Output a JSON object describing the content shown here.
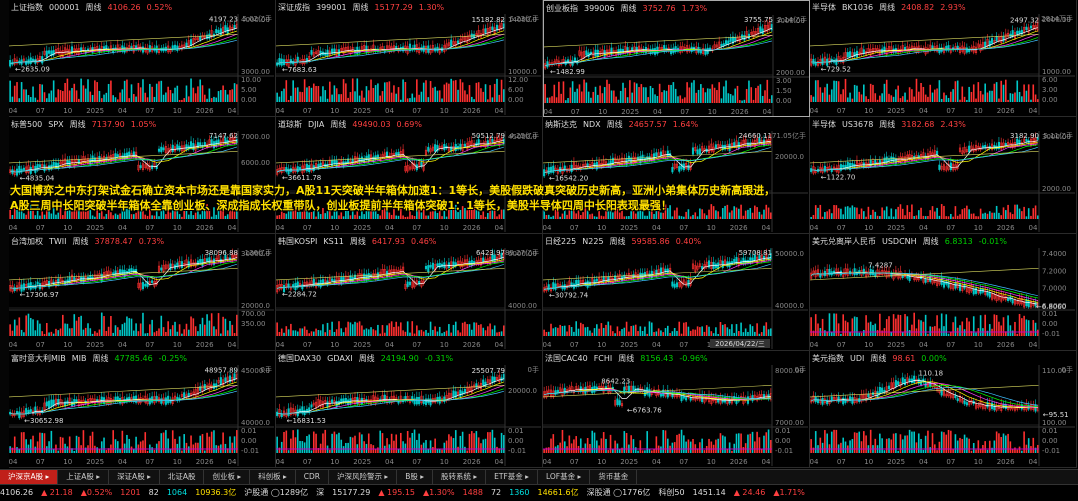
{
  "banner": {
    "line1": "大国博弈之中东打架试金石确立资本市场还是靠国家实力，A股11天突破半年箱体加速1：1等长，美股假跌破真突破历史新高，亚洲小弟集体历史新高跟进，",
    "line2": "A股三周中长阳突破半年箱体全靠创业板、深成指成长权重带队，创业板提前半年箱体突破1：1等长，美股半导体四周中长阳表现最强！"
  },
  "panels": [
    {
      "name": "上证指数",
      "code": "000001",
      "period": "周线",
      "price": "4106.26",
      "change": "0.52%",
      "dir": "up",
      "high": "4197.23",
      "low": "2635.09",
      "vol": "5.02亿手",
      "ylabels": [
        "4000.00",
        "3000.00"
      ],
      "vlabels": [
        "10.00",
        "5.00",
        "0.00"
      ],
      "xlabels": [
        "04",
        "07",
        "10",
        "2025",
        "04",
        "07",
        "10",
        "2026",
        "04"
      ],
      "trend": "up"
    },
    {
      "name": "深证成指",
      "code": "399001",
      "period": "周线",
      "price": "15177.29",
      "change": "1.30%",
      "dir": "up",
      "high": "15182.82",
      "low": "7683.63",
      "vol": "6.23亿手",
      "ylabels": [
        "14000.0",
        "10000.0"
      ],
      "vlabels": [
        "12.00",
        "6.00",
        "0.00"
      ],
      "xlabels": [
        "04",
        "07",
        "10",
        "2025",
        "04",
        "07",
        "10",
        "2026",
        "04"
      ],
      "trend": "up"
    },
    {
      "name": "创业板指",
      "code": "399006",
      "period": "周线",
      "price": "3752.76",
      "change": "1.73%",
      "dir": "up",
      "high": "3755.75",
      "low": "1482.99",
      "vol": "2.14亿手",
      "ylabels": [
        "3000.00",
        "2000.00"
      ],
      "vlabels": [
        "3.00",
        "1.50",
        "0.00"
      ],
      "xlabels": [
        "04",
        "07",
        "10",
        "2025",
        "04",
        "07",
        "10",
        "2026",
        "04"
      ],
      "trend": "up"
    },
    {
      "name": "半导体",
      "code": "BK1036",
      "period": "周线",
      "price": "2408.82",
      "change": "2.93%",
      "dir": "up",
      "high": "2497.32",
      "low": "729.52",
      "vol": "2814万手",
      "ylabels": [
        "2000.00",
        "1000.00"
      ],
      "vlabels": [
        "6.00",
        "3.00",
        "0.00"
      ],
      "xlabels": [
        "04",
        "07",
        "10",
        "2025",
        "04",
        "07",
        "10",
        "2026",
        "04"
      ],
      "trend": "up"
    },
    {
      "name": "标普500",
      "code": "SPX",
      "period": "周线",
      "price": "7137.90",
      "change": "1.05%",
      "dir": "up",
      "high": "7147.62",
      "low": "4835.04",
      "vol": "",
      "ylabels": [
        "7000.00",
        "6000.00",
        "5000.00"
      ],
      "vlabels": [
        "",
        "",
        ""
      ],
      "xlabels": [
        "04",
        "07",
        "10",
        "2025",
        "04",
        "07",
        "10",
        "2026",
        "04"
      ],
      "trend": "upv"
    },
    {
      "name": "道琼斯",
      "code": "DJIA",
      "period": "周线",
      "price": "49490.03",
      "change": "0.69%",
      "dir": "up",
      "high": "50512.79",
      "low": "36611.78",
      "vol": "4.25亿手",
      "ylabels": [
        "45000.0",
        "40000.0"
      ],
      "vlabels": [
        "",
        "",
        ""
      ],
      "xlabels": [
        "04",
        "07",
        "10",
        "2025",
        "04",
        "07",
        "10",
        "2026",
        "04"
      ],
      "trend": "upv"
    },
    {
      "name": "纳斯达克",
      "code": "NDX",
      "period": "周线",
      "price": "24657.57",
      "change": "1.64%",
      "dir": "up",
      "high": "24660.11",
      "low": "16542.20",
      "vol": "71.05亿手",
      "ylabels": [
        "20000.0"
      ],
      "vlabels": [
        "",
        "",
        ""
      ],
      "xlabels": [
        "04",
        "07",
        "10",
        "2025",
        "04",
        "07",
        "10",
        "2026",
        "04"
      ],
      "trend": "upv"
    },
    {
      "name": "半导体",
      "code": "US3678",
      "period": "周线",
      "price": "3182.68",
      "change": "2.43%",
      "dir": "up",
      "high": "3182.90",
      "low": "1122.70",
      "vol": "5.11亿手",
      "ylabels": [
        "3000.00",
        "2000.00"
      ],
      "vlabels": [
        "",
        "",
        ""
      ],
      "xlabels": [
        "04",
        "07",
        "10",
        "2025",
        "04",
        "07",
        "10",
        "2026",
        "04"
      ],
      "trend": "upv"
    },
    {
      "name": "台湾加权",
      "code": "TWII",
      "period": "周线",
      "price": "37878.47",
      "change": "0.73%",
      "dir": "up",
      "high": "38096.88",
      "low": "17306.97",
      "vol": "136亿手",
      "ylabels": [
        "30000.0",
        "20000.0"
      ],
      "vlabels": [
        "700.00",
        "350.00"
      ],
      "xlabels": [
        "04",
        "07",
        "10",
        "2025",
        "04",
        "07",
        "10",
        "2026",
        "04"
      ],
      "trend": "upv"
    },
    {
      "name": "韩国KOSPI",
      "code": "KS11",
      "period": "周线",
      "price": "6417.93",
      "change": "0.46%",
      "dir": "up",
      "high": "6423.97",
      "low": "2284.72",
      "vol": "89.27亿手",
      "ylabels": [
        "6000.00",
        "4000.00"
      ],
      "vlabels": [
        "",
        "",
        ""
      ],
      "xlabels": [
        "04",
        "07",
        "10",
        "2025",
        "04",
        "07",
        "10",
        "2026",
        "04"
      ],
      "trend": "upv"
    },
    {
      "name": "日经225",
      "code": "N225",
      "period": "周线",
      "price": "59585.86",
      "change": "0.40%",
      "dir": "up",
      "high": "59708.81",
      "low": "30792.74",
      "vol": "",
      "ylabels": [
        "50000.0",
        "40000.0"
      ],
      "vlabels": [
        "",
        "",
        ""
      ],
      "xlabels": [
        "04",
        "07",
        "10",
        "2025",
        "04",
        "07",
        "10",
        "2026",
        "04"
      ],
      "trend": "upv",
      "cursorLabel": "2026/04/22/三"
    },
    {
      "name": "美元兑离岸人民币",
      "code": "USDCNH",
      "period": "周线",
      "price": "6.8313",
      "change": "-0.01%",
      "dir": "dn",
      "high": "7.4287",
      "low": "6.8060",
      "vol": "",
      "ylabels": [
        "7.4000",
        "7.2000",
        "7.0000",
        "6.8000"
      ],
      "vlabels": [
        "0.01",
        "0.00",
        "-0.01"
      ],
      "xlabels": [
        "04",
        "07",
        "10",
        "2025",
        "04",
        "07",
        "10",
        "2026",
        "04"
      ],
      "trend": "down"
    },
    {
      "name": "富时意大利MIB",
      "code": "MIB",
      "period": "周线",
      "price": "47785.46",
      "change": "-0.25%",
      "dir": "dn",
      "high": "48957.89",
      "low": "30652.98",
      "vol": "0手",
      "ylabels": [
        "45000.0",
        "40000.0"
      ],
      "vlabels": [
        "0.01",
        "0.00",
        "-0.01"
      ],
      "xlabels": [
        "04",
        "07",
        "10",
        "2025",
        "04",
        "07",
        "10",
        "2026",
        "04"
      ],
      "trend": "up"
    },
    {
      "name": "德国DAX30",
      "code": "GDAXI",
      "period": "周线",
      "price": "24194.90",
      "change": "-0.31%",
      "dir": "dn",
      "high": "25507.79",
      "low": "16831.53",
      "vol": "0手",
      "ylabels": [
        "20000.0"
      ],
      "vlabels": [
        "0.01",
        "0.00",
        "-0.01"
      ],
      "xlabels": [
        "04",
        "07",
        "10",
        "2025",
        "04",
        "07",
        "10",
        "2026",
        "04"
      ],
      "trend": "up"
    },
    {
      "name": "法国CAC40",
      "code": "FCHI",
      "period": "周线",
      "price": "8156.43",
      "change": "-0.96%",
      "dir": "dn",
      "high": "8642.23",
      "low": "6763.76",
      "vol": "0手",
      "ylabels": [
        "8000.00",
        "7000.00"
      ],
      "vlabels": [
        "0.01",
        "0.00",
        "-0.01"
      ],
      "xlabels": [
        "04",
        "07",
        "10",
        "2025",
        "04",
        "07",
        "10",
        "2026",
        "04"
      ],
      "trend": "flat"
    },
    {
      "name": "美元指数",
      "code": "UDI",
      "period": "周线",
      "price": "98.61",
      "change": "0.00%",
      "dir": "flat",
      "high": "110.18",
      "low": "95.51",
      "vol": "0手",
      "ylabels": [
        "110.00",
        "100.00"
      ],
      "vlabels": [
        "0.01",
        "0.00",
        "-0.01"
      ],
      "xlabels": [
        "04",
        "07",
        "10",
        "2025",
        "04",
        "07",
        "10",
        "2026",
        "04"
      ],
      "trend": "down2"
    }
  ],
  "tabs": [
    {
      "label": "沪深京A股 ▸",
      "active": true
    },
    {
      "label": "上证A股 ▸",
      "active": false
    },
    {
      "label": "深证A股 ▸",
      "active": false
    },
    {
      "label": "北证A股",
      "active": false
    },
    {
      "label": "创业板 ▸",
      "active": false
    },
    {
      "label": "科创板 ▸",
      "active": false
    },
    {
      "label": "CDR",
      "active": false
    },
    {
      "label": "沪深风险警示 ▸",
      "active": false
    },
    {
      "label": "B股 ▸",
      "active": false
    },
    {
      "label": "股转系统 ▸",
      "active": false
    },
    {
      "label": "ETF基金 ▸",
      "active": false
    },
    {
      "label": "LOF基金 ▸",
      "active": false
    },
    {
      "label": "货币基金",
      "active": false
    }
  ],
  "status": [
    {
      "t": "4106.26",
      "c": "w"
    },
    {
      "t": "▲ 21.18",
      "c": "r"
    },
    {
      "t": "▲0.52%",
      "c": "r"
    },
    {
      "t": "1201",
      "c": "r"
    },
    {
      "t": "82",
      "c": "w"
    },
    {
      "t": "1064",
      "c": "c"
    },
    {
      "t": "10936.3亿",
      "c": "y"
    },
    {
      "t": "沪股通 ◯1289亿",
      "c": "w"
    },
    {
      "t": "深",
      "c": "w"
    },
    {
      "t": "15177.29",
      "c": "w"
    },
    {
      "t": "▲ 195.15",
      "c": "r"
    },
    {
      "t": "▲1.30%",
      "c": "r"
    },
    {
      "t": "1488",
      "c": "r"
    },
    {
      "t": "72",
      "c": "w"
    },
    {
      "t": "1360",
      "c": "c"
    },
    {
      "t": "14661.6亿",
      "c": "y"
    },
    {
      "t": "深股通 ◯1776亿",
      "c": "w"
    },
    {
      "t": "科创50",
      "c": "w"
    },
    {
      "t": "1451.14",
      "c": "w"
    },
    {
      "t": "▲ 24.46",
      "c": "r"
    },
    {
      "t": "▲1.71%",
      "c": "r"
    }
  ],
  "colors": {
    "up": "#ff4040",
    "down": "#00d0d0",
    "ma1": "#ffffff",
    "ma2": "#ffff00",
    "ma3": "#ff40ff",
    "ma4": "#00ff00",
    "ma5": "#40c0ff"
  }
}
